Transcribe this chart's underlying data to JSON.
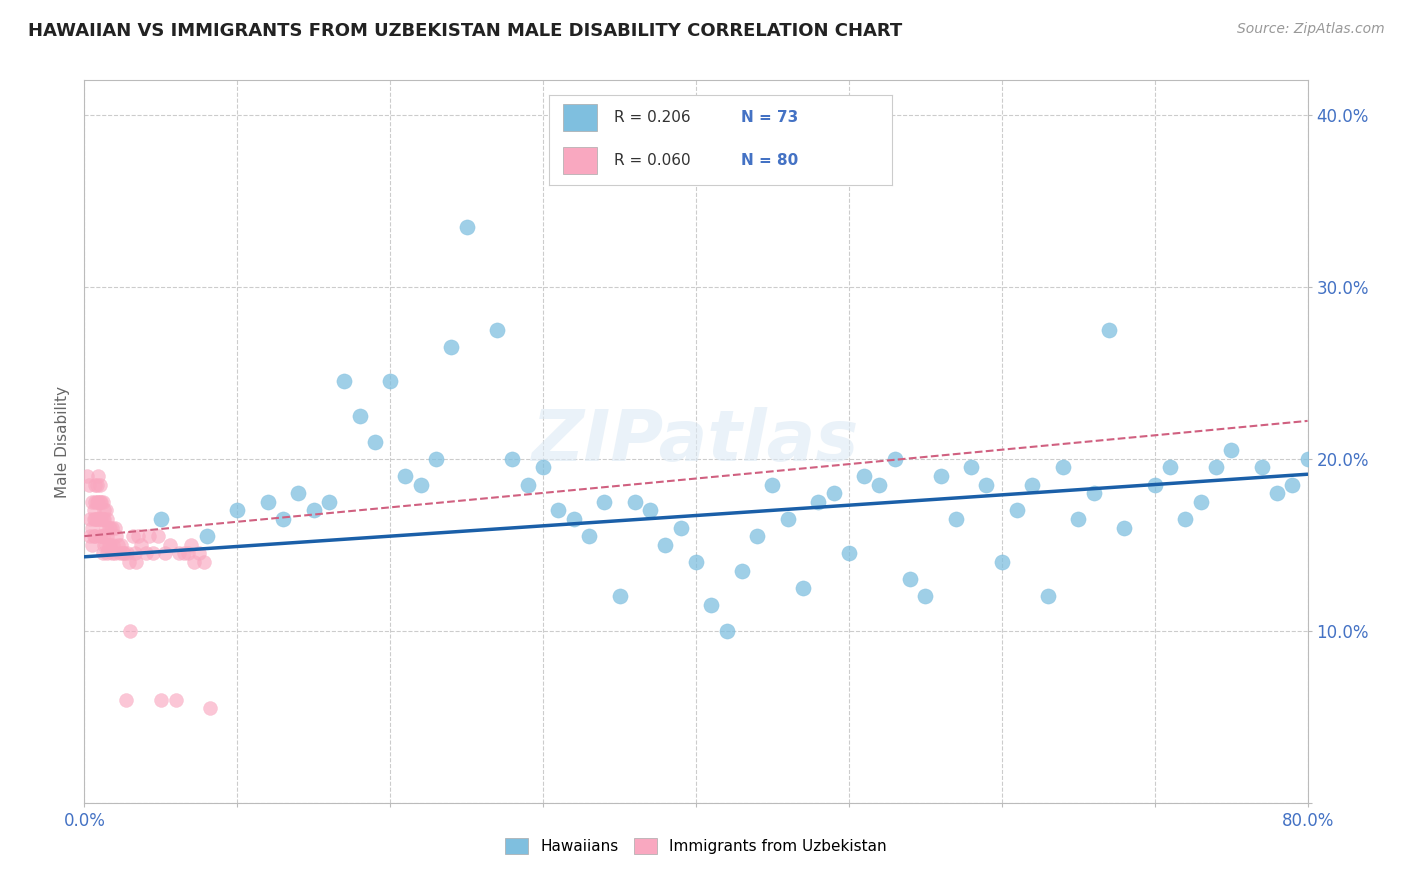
{
  "title": "HAWAIIAN VS IMMIGRANTS FROM UZBEKISTAN MALE DISABILITY CORRELATION CHART",
  "source_text": "Source: ZipAtlas.com",
  "ylabel": "Male Disability",
  "xlim": [
    0.0,
    0.8
  ],
  "ylim": [
    0.0,
    0.42
  ],
  "xtick_positions": [
    0.0,
    0.1,
    0.2,
    0.3,
    0.4,
    0.5,
    0.6,
    0.7,
    0.8
  ],
  "ytick_positions": [
    0.0,
    0.1,
    0.2,
    0.3,
    0.4
  ],
  "xticklabels": [
    "0.0%",
    "",
    "",
    "",
    "",
    "",
    "",
    "",
    "80.0%"
  ],
  "yticklabels": [
    "",
    "10.0%",
    "20.0%",
    "30.0%",
    "40.0%"
  ],
  "color_hawaiian": "#7fbfdf",
  "color_uzbekistan": "#f9a8c0",
  "color_trend_hawaiian": "#1a5fa8",
  "color_trend_uzbekistan": "#d06080",
  "background_color": "#ffffff",
  "grid_color": "#cccccc",
  "title_color": "#222222",
  "axis_label_color": "#666666",
  "tick_label_color": "#4472c4",
  "watermark": "ZIPatlas",
  "hawaiian_x": [
    0.05,
    0.08,
    0.1,
    0.12,
    0.13,
    0.14,
    0.15,
    0.16,
    0.17,
    0.18,
    0.19,
    0.2,
    0.21,
    0.22,
    0.23,
    0.24,
    0.25,
    0.27,
    0.28,
    0.29,
    0.3,
    0.31,
    0.32,
    0.33,
    0.34,
    0.35,
    0.36,
    0.37,
    0.38,
    0.39,
    0.4,
    0.41,
    0.42,
    0.43,
    0.44,
    0.45,
    0.46,
    0.47,
    0.48,
    0.49,
    0.5,
    0.51,
    0.52,
    0.53,
    0.54,
    0.55,
    0.56,
    0.57,
    0.58,
    0.59,
    0.6,
    0.61,
    0.62,
    0.63,
    0.64,
    0.65,
    0.66,
    0.67,
    0.68,
    0.7,
    0.71,
    0.72,
    0.73,
    0.74,
    0.75,
    0.77,
    0.78,
    0.79,
    0.8,
    0.81,
    0.82,
    0.83,
    0.84
  ],
  "hawaiian_y": [
    0.165,
    0.155,
    0.17,
    0.175,
    0.165,
    0.18,
    0.17,
    0.175,
    0.245,
    0.225,
    0.21,
    0.245,
    0.19,
    0.185,
    0.2,
    0.265,
    0.335,
    0.275,
    0.2,
    0.185,
    0.195,
    0.17,
    0.165,
    0.155,
    0.175,
    0.12,
    0.175,
    0.17,
    0.15,
    0.16,
    0.14,
    0.115,
    0.1,
    0.135,
    0.155,
    0.185,
    0.165,
    0.125,
    0.175,
    0.18,
    0.145,
    0.19,
    0.185,
    0.2,
    0.13,
    0.12,
    0.19,
    0.165,
    0.195,
    0.185,
    0.14,
    0.17,
    0.185,
    0.12,
    0.195,
    0.165,
    0.18,
    0.275,
    0.16,
    0.185,
    0.195,
    0.165,
    0.175,
    0.195,
    0.205,
    0.195,
    0.18,
    0.185,
    0.2,
    0.19,
    0.2,
    0.19,
    0.185
  ],
  "uzbekistan_x": [
    0.002,
    0.003,
    0.004,
    0.004,
    0.005,
    0.005,
    0.005,
    0.006,
    0.006,
    0.006,
    0.007,
    0.007,
    0.007,
    0.007,
    0.008,
    0.008,
    0.008,
    0.009,
    0.009,
    0.009,
    0.01,
    0.01,
    0.01,
    0.01,
    0.011,
    0.011,
    0.011,
    0.012,
    0.012,
    0.012,
    0.012,
    0.013,
    0.013,
    0.013,
    0.014,
    0.014,
    0.014,
    0.015,
    0.015,
    0.015,
    0.016,
    0.016,
    0.017,
    0.017,
    0.018,
    0.018,
    0.019,
    0.02,
    0.02,
    0.021,
    0.022,
    0.023,
    0.024,
    0.025,
    0.026,
    0.027,
    0.028,
    0.029,
    0.03,
    0.032,
    0.033,
    0.034,
    0.035,
    0.037,
    0.04,
    0.042,
    0.045,
    0.048,
    0.05,
    0.053,
    0.056,
    0.06,
    0.062,
    0.065,
    0.068,
    0.07,
    0.072,
    0.075,
    0.078,
    0.082
  ],
  "uzbekistan_y": [
    0.19,
    0.185,
    0.165,
    0.155,
    0.175,
    0.16,
    0.15,
    0.17,
    0.165,
    0.155,
    0.185,
    0.175,
    0.165,
    0.155,
    0.185,
    0.175,
    0.165,
    0.19,
    0.175,
    0.165,
    0.185,
    0.175,
    0.165,
    0.155,
    0.175,
    0.165,
    0.155,
    0.175,
    0.165,
    0.155,
    0.145,
    0.17,
    0.165,
    0.15,
    0.17,
    0.16,
    0.15,
    0.165,
    0.155,
    0.145,
    0.16,
    0.15,
    0.16,
    0.15,
    0.16,
    0.145,
    0.15,
    0.16,
    0.145,
    0.155,
    0.15,
    0.145,
    0.15,
    0.145,
    0.145,
    0.06,
    0.145,
    0.14,
    0.1,
    0.155,
    0.145,
    0.14,
    0.155,
    0.15,
    0.145,
    0.155,
    0.145,
    0.155,
    0.06,
    0.145,
    0.15,
    0.06,
    0.145,
    0.145,
    0.145,
    0.15,
    0.14,
    0.145,
    0.14,
    0.055
  ],
  "trend_h_x0": 0.0,
  "trend_h_x1": 0.8,
  "trend_h_y0": 0.143,
  "trend_h_y1": 0.191,
  "trend_u_x0": 0.0,
  "trend_u_x1": 0.8,
  "trend_u_y0": 0.155,
  "trend_u_y1": 0.222
}
